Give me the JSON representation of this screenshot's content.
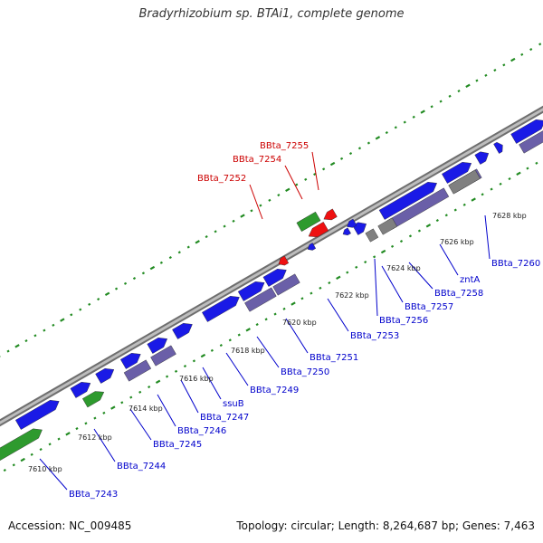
{
  "title": "Bradyrhizobium sp. BTAi1, complete genome",
  "footer": {
    "accession_label": "Accession: NC_009485",
    "topology_label": "Topology: circular; Length: 8,264,687 bp; Genes: 7,463"
  },
  "colors": {
    "backbone": "#9a9a9a",
    "tick": "#228b22",
    "blue_gene": "#1a1ae6",
    "purple_gene": "#6a5fa8",
    "gray_gene": "#808080",
    "green_gene": "#2e9a2e",
    "red_gene": "#ee1111",
    "blue_label": "#0000cc",
    "red_label": "#cc0000"
  },
  "kbp_labels": [
    "7610 kbp",
    "7612 kbp",
    "7614 kbp",
    "7616 kbp",
    "7618 kbp",
    "7620 kbp",
    "7622 kbp",
    "7624 kbp",
    "7626 kbp",
    "7628 kbp"
  ],
  "gene_labels": [
    {
      "text": "BBta_7243",
      "color": "blue"
    },
    {
      "text": "BBta_7244",
      "color": "blue"
    },
    {
      "text": "BBta_7245",
      "color": "blue"
    },
    {
      "text": "BBta_7246",
      "color": "blue"
    },
    {
      "text": "BBta_7247",
      "color": "blue"
    },
    {
      "text": "ssuB",
      "color": "blue"
    },
    {
      "text": "BBta_7249",
      "color": "blue"
    },
    {
      "text": "BBta_7250",
      "color": "blue"
    },
    {
      "text": "BBta_7251",
      "color": "blue"
    },
    {
      "text": "BBta_7253",
      "color": "blue"
    },
    {
      "text": "BBta_7256",
      "color": "blue"
    },
    {
      "text": "BBta_7257",
      "color": "blue"
    },
    {
      "text": "BBta_7258",
      "color": "blue"
    },
    {
      "text": "zntA",
      "color": "blue"
    },
    {
      "text": "BBta_7260",
      "color": "blue"
    },
    {
      "text": "BBta_7252",
      "color": "red"
    },
    {
      "text": "BBta_7254",
      "color": "red"
    },
    {
      "text": "BBta_7255",
      "color": "red"
    }
  ]
}
